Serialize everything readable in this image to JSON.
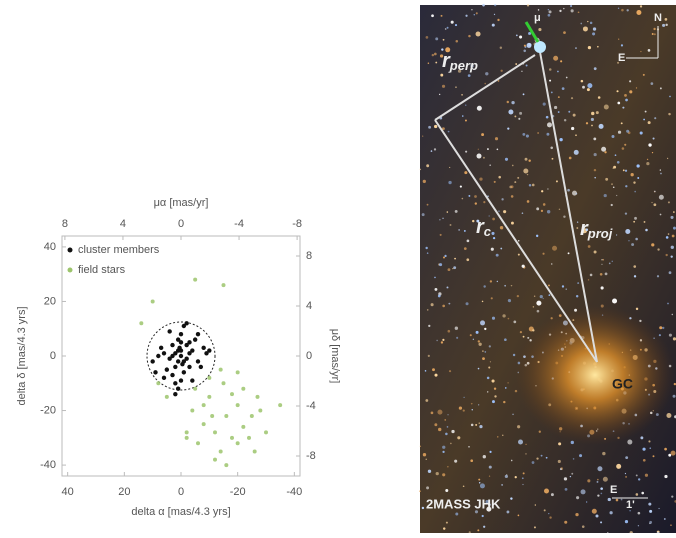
{
  "chart_data": {
    "type": "scatter",
    "xlabel": "delta α [mas/4.3 yrs]",
    "ylabel": "delta δ [mas/4.3 yrs]",
    "x2label": "μα [mas/yr]",
    "y2label": "μδ [mas/yr]",
    "xlim": [
      42,
      -42
    ],
    "xticks": [
      40,
      20,
      0,
      -20,
      -40
    ],
    "ylim": [
      -44,
      44
    ],
    "yticks": [
      40,
      20,
      0,
      -20,
      -40
    ],
    "x2lim": [
      8.2,
      -8.2
    ],
    "x2ticks": [
      8,
      4,
      0,
      -4,
      -8
    ],
    "y2lim": [
      -9.6,
      9.6
    ],
    "y2ticks": [
      8,
      4,
      0,
      -4,
      -8
    ],
    "selection_radius": 12,
    "legend": "upper left",
    "series": [
      {
        "name": "cluster members",
        "color": "#111111",
        "x": [
          0,
          2,
          -2,
          1,
          -1,
          3,
          -3,
          0.5,
          -0.5,
          4,
          -4,
          2,
          -2,
          6,
          -6,
          1,
          -1,
          3,
          -3,
          8,
          -8,
          0,
          0,
          5,
          -5,
          2,
          -7,
          7,
          -9,
          9,
          1,
          -1,
          4,
          -4,
          0,
          3,
          -3,
          10,
          -10,
          6,
          -6,
          2,
          -2,
          0,
          1
        ],
        "values": [
          0,
          1,
          -1,
          2,
          -2,
          0,
          1,
          3,
          -3,
          -1,
          2,
          -4,
          4,
          1,
          -2,
          6,
          -6,
          -7,
          5,
          0,
          3,
          8,
          -9,
          -5,
          6,
          -10,
          -4,
          3,
          1,
          -6,
          -12,
          11,
          9,
          -9,
          2,
          4,
          -4,
          -2,
          2,
          -8,
          8,
          -14,
          12,
          5,
          -2
        ]
      },
      {
        "name": "field stars",
        "color": "#9cc46c",
        "x": [
          -5,
          -10,
          -15,
          -20,
          -25,
          -8,
          -12,
          -18,
          -22,
          -28,
          -6,
          -14,
          -16,
          -24,
          -30,
          -10,
          -20,
          -26,
          -4,
          -12,
          -18,
          -22,
          -8,
          -16,
          -2,
          -14,
          -27,
          -35,
          -20,
          -11,
          10,
          -5,
          -15,
          8,
          14,
          -2,
          5
        ],
        "values": [
          -12,
          -15,
          -10,
          -18,
          -22,
          -25,
          -28,
          -30,
          -26,
          -20,
          -32,
          -35,
          -22,
          -30,
          -28,
          -8,
          -6,
          -35,
          -20,
          -38,
          -14,
          -12,
          -18,
          -40,
          -28,
          -5,
          -15,
          -18,
          -32,
          -22,
          20,
          28,
          26,
          -10,
          12,
          -30,
          -15
        ]
      }
    ]
  },
  "image": {
    "mu": "μ",
    "north": "N",
    "east": "E",
    "r_perp": {
      "symbol": "r",
      "subscript": "perp"
    },
    "r_proj": {
      "symbol": "r",
      "subscript": "proj"
    },
    "r_c": {
      "symbol": "r",
      "subscript": "c"
    },
    "gc": "GC",
    "credit": "2MASS JHK",
    "scale_east": "E",
    "scale_label": "1'"
  }
}
